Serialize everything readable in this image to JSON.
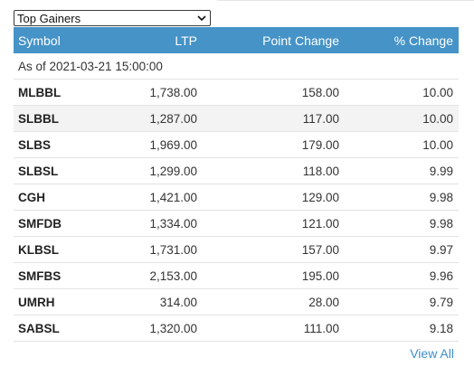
{
  "filter": {
    "selected": "Top Gainers"
  },
  "table": {
    "headers": {
      "symbol": "Symbol",
      "ltp": "LTP",
      "point_change": "Point Change",
      "pct_change": "% Change"
    },
    "as_of": "As of 2021-03-21 15:00:00",
    "rows": [
      {
        "symbol": "MLBBL",
        "ltp": "1,738.00",
        "point_change": "158.00",
        "pct_change": "10.00"
      },
      {
        "symbol": "SLBBL",
        "ltp": "1,287.00",
        "point_change": "117.00",
        "pct_change": "10.00"
      },
      {
        "symbol": "SLBS",
        "ltp": "1,969.00",
        "point_change": "179.00",
        "pct_change": "10.00"
      },
      {
        "symbol": "SLBSL",
        "ltp": "1,299.00",
        "point_change": "118.00",
        "pct_change": "9.99"
      },
      {
        "symbol": "CGH",
        "ltp": "1,421.00",
        "point_change": "129.00",
        "pct_change": "9.98"
      },
      {
        "symbol": "SMFDB",
        "ltp": "1,334.00",
        "point_change": "121.00",
        "pct_change": "9.98"
      },
      {
        "symbol": "KLBSL",
        "ltp": "1,731.00",
        "point_change": "157.00",
        "pct_change": "9.97"
      },
      {
        "symbol": "SMFBS",
        "ltp": "2,153.00",
        "point_change": "195.00",
        "pct_change": "9.96"
      },
      {
        "symbol": "UMRH",
        "ltp": "314.00",
        "point_change": "28.00",
        "pct_change": "9.79"
      },
      {
        "symbol": "SABSL",
        "ltp": "1,320.00",
        "point_change": "111.00",
        "pct_change": "9.18"
      }
    ]
  },
  "footer": {
    "view_all": "View All"
  },
  "colors": {
    "header_bg": "#4593c7",
    "link": "#3f8ec9",
    "alt_row": "#f3f3f3"
  }
}
